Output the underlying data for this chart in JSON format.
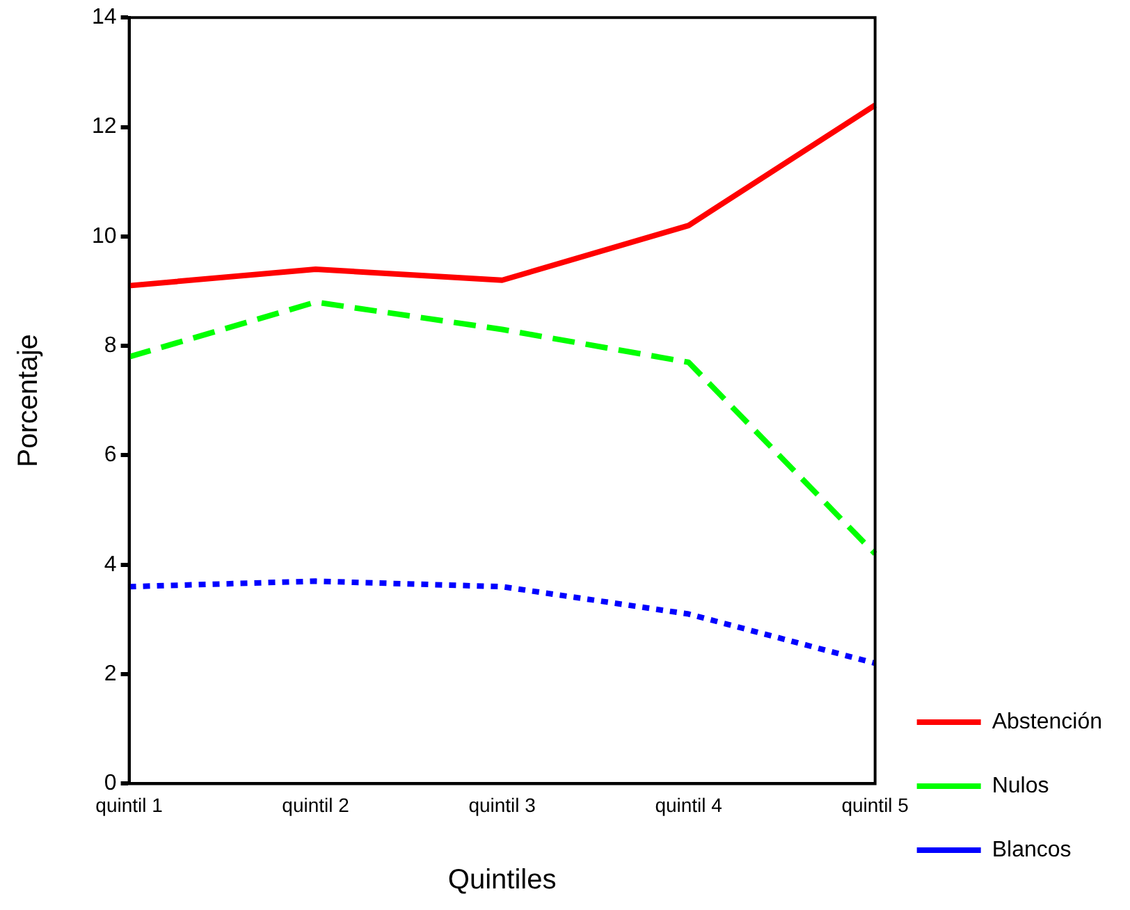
{
  "chart_data": {
    "type": "line",
    "xlabel": "Quintiles",
    "ylabel": "Porcentaje",
    "categories": [
      "quintil 1",
      "quintil 2",
      "quintil 3",
      "quintil 4",
      "quintil 5"
    ],
    "series": [
      {
        "name": "Abstención",
        "color": "#ff0000",
        "line_style": "solid",
        "values": [
          9.1,
          9.4,
          9.2,
          10.2,
          12.4
        ]
      },
      {
        "name": "Nulos",
        "color": "#00ff00",
        "line_style": "dashed",
        "values": [
          7.8,
          8.8,
          8.3,
          7.7,
          4.2
        ]
      },
      {
        "name": "Blancos",
        "color": "#0000ff",
        "line_style": "dotted",
        "values": [
          3.6,
          3.7,
          3.6,
          3.1,
          2.2
        ]
      }
    ],
    "ylim": [
      0,
      14
    ],
    "yticks": [
      0,
      2,
      4,
      6,
      8,
      10,
      12,
      14
    ],
    "grid": false,
    "legend": "right",
    "marker": "none"
  }
}
